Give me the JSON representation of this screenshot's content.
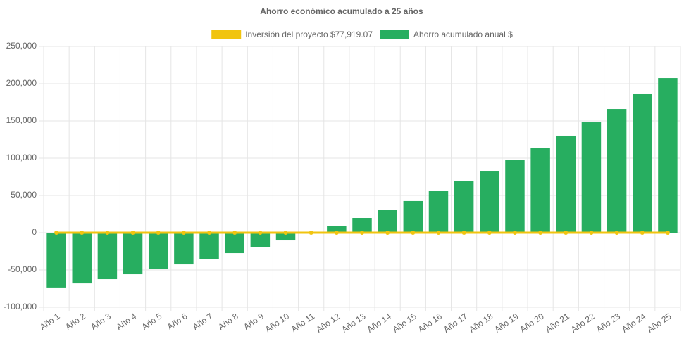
{
  "chart_data": {
    "type": "bar",
    "title": "Ahorro económico acumulado a 25 años",
    "categories": [
      "Año 1",
      "Año 2",
      "Año 3",
      "Año 4",
      "Año 5",
      "Año 6",
      "Año 7",
      "Año 8",
      "Año 9",
      "Año 10",
      "Año 11",
      "Año 12",
      "Año 13",
      "Año 14",
      "Año 15",
      "Año 16",
      "Año 17",
      "Año 18",
      "Año 19",
      "Año 20",
      "Año 21",
      "Año 22",
      "Año 23",
      "Año 24",
      "Año 25"
    ],
    "series": [
      {
        "name": "Inversión del proyecto $77,919.07",
        "type": "line",
        "color": "#f1c40f",
        "values": [
          0,
          0,
          0,
          0,
          0,
          0,
          0,
          0,
          0,
          0,
          0,
          0,
          0,
          0,
          0,
          0,
          0,
          0,
          0,
          0,
          0,
          0,
          0,
          0,
          0
        ]
      },
      {
        "name": "Ahorro acumulado anual $",
        "type": "bar",
        "color": "#27ae60",
        "values": [
          -73500,
          -68000,
          -62300,
          -55700,
          -49000,
          -42500,
          -35000,
          -27400,
          -18900,
          -10400,
          -800,
          9400,
          19800,
          31100,
          42500,
          55700,
          68900,
          83000,
          97200,
          113200,
          130200,
          148100,
          166000,
          186800,
          207500
        ]
      }
    ],
    "ylim": [
      -100000,
      250000
    ],
    "yticks": [
      {
        "value": -100000,
        "label": "-100,000"
      },
      {
        "value": -50000,
        "label": "-50,000"
      },
      0,
      {
        "value": 50000,
        "label": "50,000"
      },
      {
        "value": 100000,
        "label": "100,000"
      },
      {
        "value": 150000,
        "label": "150,000"
      },
      {
        "value": 200000,
        "label": "200,000"
      },
      {
        "value": 250000,
        "label": "250,000"
      }
    ],
    "grid": true,
    "legend": "top"
  }
}
